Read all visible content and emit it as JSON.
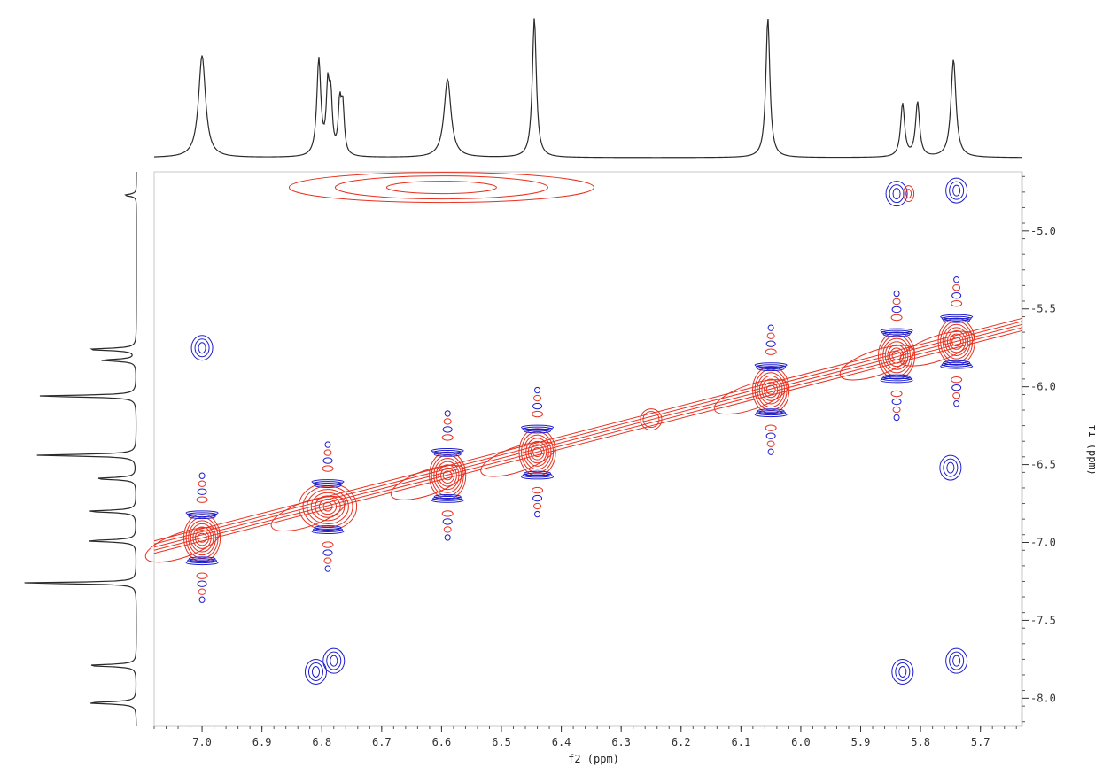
{
  "chart_data": {
    "type": "2d-nmr-contour",
    "xlabel": "f2 (ppm)",
    "ylabel": "f1 (ppm)",
    "xlim": [
      7.08,
      5.63
    ],
    "ylim": [
      4.62,
      8.18
    ],
    "x_ticks": [
      "7.0",
      "6.9",
      "6.8",
      "6.7",
      "6.6",
      "6.5",
      "6.4",
      "6.3",
      "6.2",
      "6.1",
      "6.0",
      "5.9",
      "5.8",
      "5.7"
    ],
    "y_ticks": [
      "5.0",
      "5.5",
      "6.0",
      "6.5",
      "7.0",
      "7.5",
      "8.0"
    ],
    "colors": {
      "positive": "#e8301f",
      "negative": "#1c1ccc",
      "projection": "#2a2a2a"
    },
    "f2_projection_peaks": [
      {
        "shift": 7.0,
        "height": 0.73,
        "width": 0.007
      },
      {
        "shift": 6.805,
        "height": 0.69,
        "width": 0.004
      },
      {
        "shift": 6.79,
        "height": 0.45,
        "width": 0.003
      },
      {
        "shift": 6.785,
        "height": 0.38,
        "width": 0.003
      },
      {
        "shift": 6.77,
        "height": 0.35,
        "width": 0.003
      },
      {
        "shift": 6.765,
        "height": 0.33,
        "width": 0.003
      },
      {
        "shift": 6.59,
        "height": 0.56,
        "width": 0.007
      },
      {
        "shift": 6.445,
        "height": 1.0,
        "width": 0.004
      },
      {
        "shift": 6.055,
        "height": 1.0,
        "width": 0.004
      },
      {
        "shift": 5.83,
        "height": 0.38,
        "width": 0.004
      },
      {
        "shift": 5.805,
        "height": 0.39,
        "width": 0.004
      },
      {
        "shift": 5.745,
        "height": 0.7,
        "width": 0.005
      }
    ],
    "f1_projection_peaks": [
      {
        "shift": 4.77,
        "height": 0.1,
        "width": 0.008
      },
      {
        "shift": 5.76,
        "height": 0.42,
        "width": 0.008
      },
      {
        "shift": 5.83,
        "height": 0.3,
        "width": 0.008
      },
      {
        "shift": 6.06,
        "height": 0.85,
        "width": 0.007
      },
      {
        "shift": 6.44,
        "height": 0.85,
        "width": 0.007
      },
      {
        "shift": 6.59,
        "height": 0.35,
        "width": 0.008
      },
      {
        "shift": 6.8,
        "height": 0.42,
        "width": 0.008
      },
      {
        "shift": 6.99,
        "height": 0.42,
        "width": 0.008
      },
      {
        "shift": 7.26,
        "height": 1.0,
        "width": 0.006
      },
      {
        "shift": 7.79,
        "height": 0.42,
        "width": 0.008
      },
      {
        "shift": 8.03,
        "height": 0.42,
        "width": 0.008
      }
    ],
    "diagonal_peaks": [
      {
        "x": 7.0,
        "y": 6.97
      },
      {
        "x": 6.79,
        "y": 6.77
      },
      {
        "x": 6.59,
        "y": 6.57
      },
      {
        "x": 6.44,
        "y": 6.42
      },
      {
        "x": 6.25,
        "y": 6.21
      },
      {
        "x": 6.05,
        "y": 6.02
      },
      {
        "x": 5.84,
        "y": 5.8
      },
      {
        "x": 5.74,
        "y": 5.71
      }
    ],
    "negative_peaks": [
      {
        "x": 7.0,
        "y": 5.75
      },
      {
        "x": 6.81,
        "y": 7.83
      },
      {
        "x": 6.78,
        "y": 7.76
      },
      {
        "x": 5.84,
        "y": 4.76
      },
      {
        "x": 5.74,
        "y": 4.74
      },
      {
        "x": 5.83,
        "y": 7.83
      },
      {
        "x": 5.74,
        "y": 7.76
      },
      {
        "x": 5.75,
        "y": 6.52
      }
    ],
    "positive_offdiagonal_peaks": [
      {
        "x": 6.6,
        "y": 4.72
      },
      {
        "x": 5.82,
        "y": 4.76
      }
    ]
  }
}
